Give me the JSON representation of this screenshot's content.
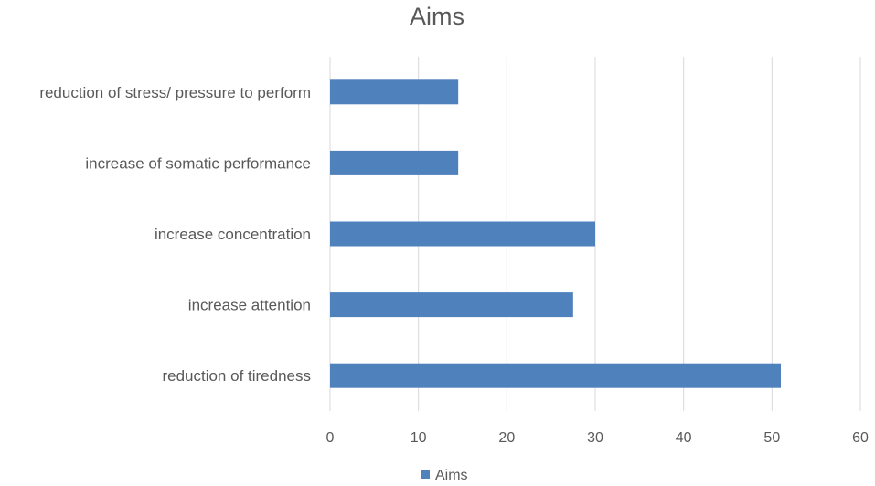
{
  "chart_data": {
    "type": "bar",
    "orientation": "horizontal",
    "title": "Aims",
    "categories": [
      "reduction of stress/ pressure to perform",
      "increase of somatic performance",
      "increase concentration",
      "increase attention",
      "reduction of tiredness"
    ],
    "series": [
      {
        "name": "Aims",
        "values": [
          14.5,
          14.5,
          30,
          27.5,
          51
        ],
        "color": "#4f81bd"
      }
    ],
    "xlim": [
      0,
      60
    ],
    "xticks": [
      0,
      10,
      20,
      30,
      40,
      50,
      60
    ],
    "xlabel": "",
    "ylabel": "",
    "grid": "vertical",
    "legend_position": "bottom"
  }
}
